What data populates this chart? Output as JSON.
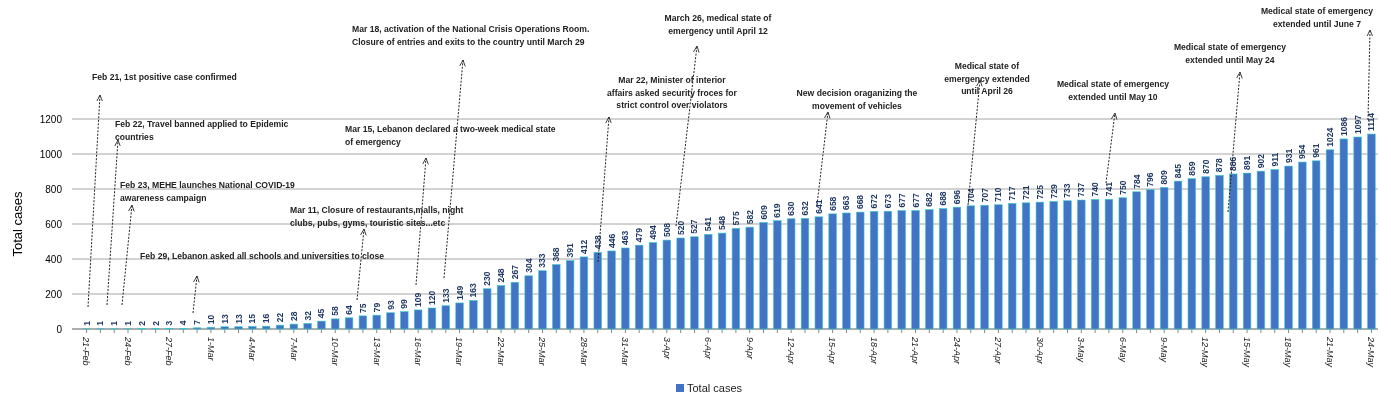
{
  "chart_data": {
    "type": "bar",
    "ylabel": "Total cases",
    "categories": [
      "21-Feb",
      null,
      null,
      "24-Feb",
      null,
      null,
      "27-Feb",
      null,
      null,
      "1-Mar",
      null,
      null,
      "4-Mar",
      null,
      null,
      "7-Mar",
      null,
      null,
      "10-Mar",
      null,
      null,
      "13-Mar",
      null,
      null,
      "16-Mar",
      null,
      null,
      "19-Mar",
      null,
      null,
      "22-Mar",
      null,
      null,
      "25-Mar",
      null,
      null,
      "28-Mar",
      null,
      null,
      "31-Mar",
      null,
      null,
      "3-Apr",
      null,
      null,
      "6-Apr",
      null,
      null,
      "9-Apr",
      null,
      null,
      "12-Apr",
      null,
      null,
      "15-Apr",
      null,
      null,
      "18-Apr",
      null,
      null,
      "21-Apr",
      null,
      null,
      "24-Apr",
      null,
      null,
      "27-Apr",
      null,
      null,
      "30-Apr",
      null,
      null,
      "3-May",
      null,
      null,
      "6-May",
      null,
      null,
      "9-May",
      null,
      null,
      "12-May",
      null,
      null,
      "15-May",
      null,
      null,
      "18-May",
      null,
      null,
      "21-May",
      null,
      null,
      "24-May"
    ],
    "series": [
      {
        "name": "Total cases",
        "color": "#4472c4",
        "values": [
          1,
          1,
          1,
          1,
          2,
          2,
          3,
          4,
          7,
          10,
          13,
          13,
          15,
          16,
          22,
          28,
          32,
          45,
          58,
          64,
          75,
          79,
          93,
          99,
          109,
          120,
          133,
          149,
          163,
          230,
          248,
          267,
          304,
          333,
          368,
          391,
          412,
          438,
          446,
          463,
          479,
          494,
          508,
          520,
          527,
          541,
          548,
          575,
          582,
          609,
          619,
          630,
          632,
          641,
          658,
          663,
          668,
          672,
          673,
          677,
          677,
          682,
          688,
          696,
          704,
          707,
          710,
          717,
          721,
          725,
          729,
          733,
          737,
          740,
          741,
          750,
          784,
          796,
          809,
          845,
          859,
          870,
          878,
          886,
          891,
          902,
          911,
          931,
          954,
          961,
          1024,
          1086,
          1097,
          1114
        ]
      }
    ],
    "ylim": [
      0,
      1200
    ],
    "yticks": [
      0,
      200,
      400,
      600,
      800,
      1000,
      1200
    ],
    "grid": "y",
    "legend": "bottom",
    "data_labels": true,
    "annotations": [
      "Feb 21, 1st positive case confirmed",
      "Feb 22, Travel banned applied to Epidemic\ncountries",
      "Feb 23, MEHE launches National COVID-19\nawareness campaign",
      "Feb 29, Lebanon asked all schools and universities to close",
      "Mar 11, Closure of restaurants,malls, night\nclubs, pubs, gyms, touristic sites...etc",
      "Mar 15, Lebanon declared a two-week medical state\nof emergency",
      "Mar 18, activation of the National Crisis Operations Room.\nClosure of entries and exits to the country until March 29",
      "Mar 22, Minister of interior\naffairs asked security froces for\nstrict control over violators",
      "March 26, medical state of\nemergency until April 12",
      "New decision oraganizing the\nmovement of vehicles",
      "Medical state of\nemergency extended\nuntil April 26",
      "Medical state of emergency\nextended until May 10",
      "Medical state of emergency\nextended until May 24",
      "Medical state of emergency\nextended until June  7"
    ]
  }
}
